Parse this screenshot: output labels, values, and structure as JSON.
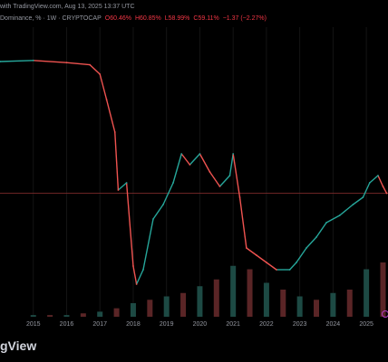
{
  "header": {
    "created_text": "with TradingView.com, Aug 13, 2025 13:37 UTC",
    "symbol_text": "Dominance, % · 1W · CRYPTOCAP",
    "ohlc": {
      "open": "O60.46%",
      "high": "H60.85%",
      "low": "L58.99%",
      "close": "C59.11%",
      "change": "−1.37 (−2.27%)"
    }
  },
  "brand": {
    "text": "gView"
  },
  "colors": {
    "up": "#26a69a",
    "down": "#ef5350",
    "volume_up": "#1d4a44",
    "volume_down": "#5a2526",
    "price_line": "#7a2a2a",
    "text": "#9598a1"
  },
  "chart_data": {
    "type": "line",
    "title": "",
    "xlabel": "",
    "ylabel": "",
    "x_ticks": [
      "2015",
      "2016",
      "2017",
      "2018",
      "2019",
      "2020",
      "2021",
      "2022",
      "2023",
      "2024",
      "2025"
    ],
    "series": [
      {
        "x": [
          2014.0,
          2015.0,
          2016.0,
          2016.7,
          2017.0,
          2017.2,
          2017.45,
          2017.55,
          2017.8,
          2018.0,
          2018.1,
          2018.3,
          2018.6,
          2018.9,
          2019.2,
          2019.45,
          2019.7,
          2020.0,
          2020.3,
          2020.6,
          2020.9,
          2021.0,
          2021.2,
          2021.4,
          2021.7,
          2022.0,
          2022.3,
          2022.7,
          2022.9,
          2023.2,
          2023.5,
          2023.8,
          2024.2,
          2024.6,
          2024.9,
          2025.1,
          2025.35,
          2025.5,
          2025.61
        ],
        "values": [
          95.5,
          95.8,
          95.2,
          94.6,
          92.0,
          85.0,
          76.0,
          60.0,
          62.0,
          39.0,
          34.0,
          38.0,
          52.0,
          56.0,
          62.0,
          70.0,
          67.0,
          70.0,
          65.0,
          61.0,
          64.0,
          70.0,
          58.0,
          44.0,
          42.0,
          40.0,
          38.0,
          38.0,
          40.0,
          44.0,
          47.0,
          51.0,
          53.0,
          56.0,
          58.0,
          62.0,
          64.0,
          61.0,
          59.11
        ]
      }
    ],
    "volume": {
      "x": [
        2015.0,
        2015.5,
        2016.0,
        2016.5,
        2017.0,
        2017.5,
        2018.0,
        2018.5,
        2019.0,
        2019.5,
        2020.0,
        2020.5,
        2021.0,
        2021.5,
        2022.0,
        2022.5,
        2023.0,
        2023.5,
        2024.0,
        2024.5,
        2025.0,
        2025.5
      ],
      "values": [
        1,
        1,
        1,
        2,
        3,
        5,
        8,
        10,
        12,
        14,
        18,
        22,
        30,
        28,
        20,
        16,
        12,
        10,
        14,
        16,
        28,
        32
      ]
    },
    "xlim": [
      2014.0,
      2025.65
    ],
    "ylim": [
      30,
      100
    ],
    "last_price": 59.11,
    "grid": true,
    "legend": "none"
  }
}
